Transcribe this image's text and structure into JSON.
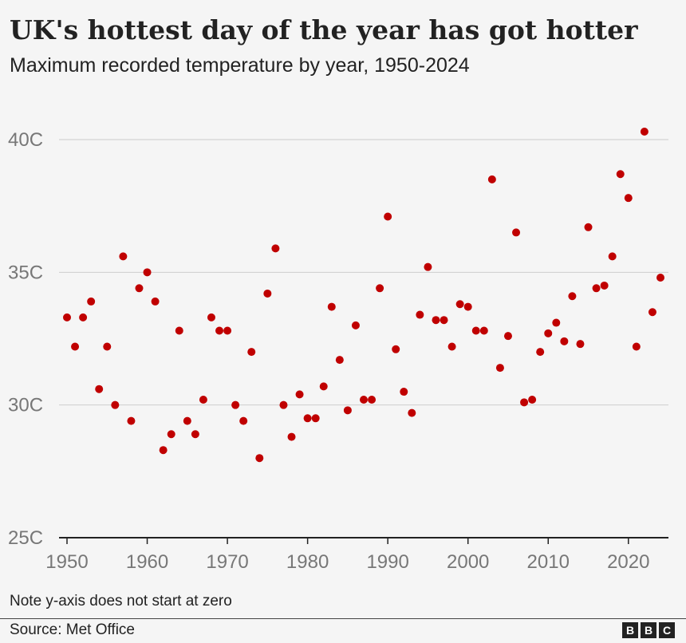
{
  "title": "UK's hottest day of the year has got hotter",
  "subtitle": "Maximum recorded temperature by year, 1950-2024",
  "note": "Note y-axis does not start at zero",
  "source": "Source: Met Office",
  "logo": [
    "B",
    "B",
    "C"
  ],
  "colors": {
    "dot": "#c00000",
    "grid": "#cccccc",
    "axis": "#222222",
    "tick_text": "#777777"
  },
  "chart_data": {
    "type": "scatter",
    "title": "UK's hottest day of the year has got hotter",
    "subtitle": "Maximum recorded temperature by year, 1950-2024",
    "xlabel": "",
    "ylabel": "",
    "xlim": [
      1950,
      2024
    ],
    "ylim": [
      25,
      40
    ],
    "x_ticks": [
      1950,
      1960,
      1970,
      1980,
      1990,
      2000,
      2010,
      2020
    ],
    "y_ticks": [
      {
        "value": 25,
        "label": "25C"
      },
      {
        "value": 30,
        "label": "30C"
      },
      {
        "value": 35,
        "label": "35C"
      },
      {
        "value": 40,
        "label": "40C"
      }
    ],
    "grid": "horizontal",
    "points": [
      [
        1950,
        33.3
      ],
      [
        1951,
        32.2
      ],
      [
        1952,
        33.3
      ],
      [
        1953,
        33.9
      ],
      [
        1954,
        30.6
      ],
      [
        1955,
        32.2
      ],
      [
        1956,
        30.0
      ],
      [
        1957,
        35.6
      ],
      [
        1958,
        29.4
      ],
      [
        1959,
        34.4
      ],
      [
        1960,
        35.0
      ],
      [
        1961,
        33.9
      ],
      [
        1962,
        28.3
      ],
      [
        1963,
        28.9
      ],
      [
        1964,
        32.8
      ],
      [
        1965,
        29.4
      ],
      [
        1966,
        28.9
      ],
      [
        1967,
        30.2
      ],
      [
        1968,
        33.3
      ],
      [
        1969,
        32.8
      ],
      [
        1970,
        32.8
      ],
      [
        1971,
        30.0
      ],
      [
        1972,
        29.4
      ],
      [
        1973,
        32.0
      ],
      [
        1974,
        28.0
      ],
      [
        1975,
        34.2
      ],
      [
        1976,
        35.9
      ],
      [
        1977,
        30.0
      ],
      [
        1978,
        28.8
      ],
      [
        1979,
        30.4
      ],
      [
        1980,
        29.5
      ],
      [
        1981,
        29.5
      ],
      [
        1982,
        30.7
      ],
      [
        1983,
        33.7
      ],
      [
        1984,
        31.7
      ],
      [
        1985,
        29.8
      ],
      [
        1986,
        33.0
      ],
      [
        1987,
        30.2
      ],
      [
        1988,
        30.2
      ],
      [
        1989,
        34.4
      ],
      [
        1990,
        37.1
      ],
      [
        1991,
        32.1
      ],
      [
        1992,
        30.5
      ],
      [
        1993,
        29.7
      ],
      [
        1994,
        33.4
      ],
      [
        1995,
        35.2
      ],
      [
        1996,
        33.2
      ],
      [
        1997,
        33.2
      ],
      [
        1998,
        32.2
      ],
      [
        1999,
        33.8
      ],
      [
        2000,
        33.7
      ],
      [
        2001,
        32.8
      ],
      [
        2002,
        32.8
      ],
      [
        2003,
        38.5
      ],
      [
        2004,
        31.4
      ],
      [
        2005,
        32.6
      ],
      [
        2006,
        36.5
      ],
      [
        2007,
        30.1
      ],
      [
        2008,
        30.2
      ],
      [
        2009,
        32.0
      ],
      [
        2010,
        32.7
      ],
      [
        2011,
        33.1
      ],
      [
        2012,
        32.4
      ],
      [
        2013,
        34.1
      ],
      [
        2014,
        32.3
      ],
      [
        2015,
        36.7
      ],
      [
        2016,
        34.4
      ],
      [
        2017,
        34.5
      ],
      [
        2018,
        35.6
      ],
      [
        2019,
        38.7
      ],
      [
        2020,
        37.8
      ],
      [
        2021,
        32.2
      ],
      [
        2022,
        40.3
      ],
      [
        2023,
        33.5
      ],
      [
        2024,
        34.8
      ]
    ]
  }
}
